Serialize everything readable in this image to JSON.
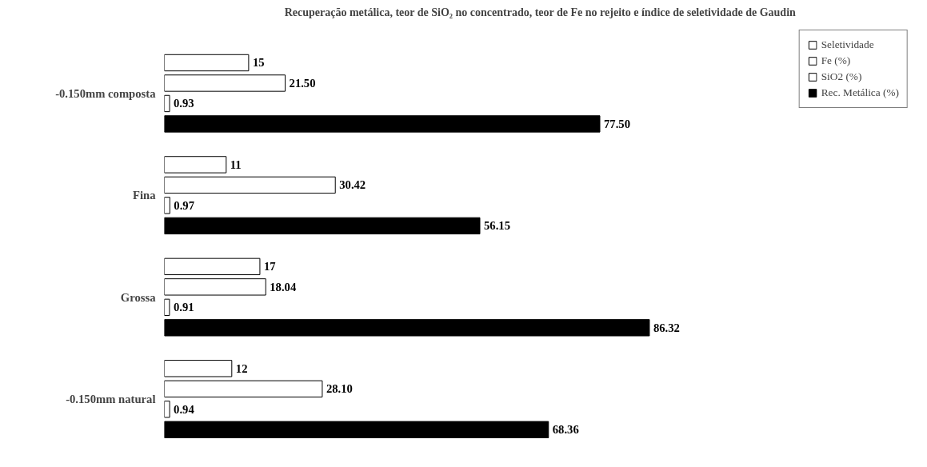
{
  "chart_data": {
    "type": "bar",
    "orientation": "horizontal",
    "title": "Recuperação metálica, teor de SiO₂ no concentrado, teor de Fe no rejeito e índice de seletividade de Gaudin",
    "categories": [
      "-0.150mm composta",
      "Fina",
      "Grossa",
      "-0.150mm natural"
    ],
    "series": [
      {
        "name": "Seletividade",
        "color": "#ffffff",
        "values": [
          15,
          11,
          17,
          12
        ],
        "value_labels": [
          "15",
          "11",
          "17",
          "12"
        ]
      },
      {
        "name": "Fe (%)",
        "color": "#ffffff",
        "values": [
          21.5,
          30.42,
          18.04,
          28.1
        ],
        "value_labels": [
          "21.50",
          "30.42",
          "18.04",
          "28.10"
        ]
      },
      {
        "name": "SiO2 (%)",
        "color": "#ffffff",
        "values": [
          0.93,
          0.97,
          0.91,
          0.94
        ],
        "value_labels": [
          "0.93",
          "0.97",
          "0.91",
          "0.94"
        ]
      },
      {
        "name": "Rec. Metálica (%)",
        "color": "#000000",
        "values": [
          77.5,
          56.15,
          86.32,
          68.36
        ],
        "value_labels": [
          "77.50",
          "56.15",
          "86.32",
          "68.36"
        ]
      }
    ],
    "legend": "top right",
    "grid": false
  }
}
